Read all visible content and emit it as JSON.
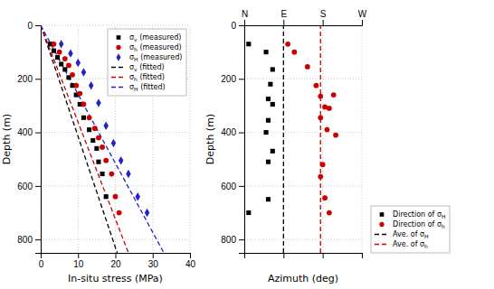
{
  "chart_data": [
    {
      "type": "scatter",
      "x_label": "In-situ stress (MPa)",
      "y_label": "Depth (m)",
      "xlim": [
        0,
        40
      ],
      "ylim": [
        850,
        0
      ],
      "xticks": [
        0,
        10,
        20,
        30,
        40
      ],
      "yticks": [
        0,
        200,
        400,
        600,
        800
      ],
      "grid": true,
      "legend": "upper right",
      "series": [
        {
          "name": "σv (measured)",
          "color": "#000000",
          "marker": "square",
          "x": [
            2.5,
            3.5,
            4.5,
            5.5,
            6.5,
            7.5,
            8.5,
            9.5,
            10.5,
            11.5,
            13.0,
            14.0,
            15.0,
            15.5,
            16.5,
            17.5
          ],
          "values": [
            70,
            95,
            120,
            145,
            165,
            195,
            225,
            260,
            295,
            345,
            390,
            430,
            460,
            510,
            555,
            640
          ]
        },
        {
          "name": "σh (measured)",
          "color": "#cc0000",
          "marker": "circle",
          "x": [
            3.5,
            5.0,
            6.5,
            7.5,
            8.5,
            9.5,
            10.5,
            11.5,
            13.0,
            14.5,
            15.5,
            16.5,
            17.5,
            19.0,
            20.0,
            21.0
          ],
          "values": [
            70,
            100,
            125,
            150,
            185,
            225,
            255,
            295,
            345,
            385,
            420,
            455,
            505,
            555,
            640,
            700
          ]
        },
        {
          "name": "σH (measured)",
          "color": "#2222cc",
          "marker": "diamond",
          "x": [
            5.5,
            8.0,
            10.0,
            11.5,
            13.5,
            15.5,
            17.5,
            19.5,
            21.5,
            23.5,
            26.0,
            28.5
          ],
          "values": [
            70,
            105,
            140,
            175,
            225,
            290,
            375,
            440,
            505,
            555,
            640,
            700
          ]
        },
        {
          "name": "σv (fitted)",
          "type": "line",
          "color": "#000000",
          "line_style": "dashed",
          "x": [
            0,
            20.5
          ],
          "values": [
            0,
            850
          ]
        },
        {
          "name": "σh (fitted)",
          "type": "line",
          "color": "#cc0000",
          "line_style": "dashed",
          "x": [
            0,
            23.5
          ],
          "values": [
            0,
            850
          ]
        },
        {
          "name": "σH (fitted)",
          "type": "line",
          "color": "#2222cc",
          "line_style": "dashed",
          "x": [
            0,
            33.0
          ],
          "values": [
            0,
            850
          ]
        }
      ]
    },
    {
      "type": "scatter",
      "x_label": "Azimuth (deg)",
      "y_label": "Depth (m)",
      "xlim": [
        0,
        270
      ],
      "ylim": [
        850,
        0
      ],
      "xticks": [
        {
          "value": 0,
          "label": "N"
        },
        {
          "value": 90,
          "label": "E"
        },
        {
          "value": 180,
          "label": "S"
        },
        {
          "value": 270,
          "label": "W"
        }
      ],
      "yticks": [
        0,
        200,
        400,
        600,
        800
      ],
      "grid": true,
      "legend": "right",
      "series": [
        {
          "name": "Direction of σH",
          "color": "#000000",
          "marker": "square",
          "x": [
            10,
            50,
            65,
            60,
            55,
            65,
            55,
            50,
            65,
            55,
            55,
            10
          ],
          "values": [
            70,
            100,
            165,
            220,
            275,
            295,
            355,
            400,
            470,
            510,
            650,
            700
          ]
        },
        {
          "name": "Direction of σh",
          "color": "#cc0000",
          "marker": "circle",
          "x": [
            100,
            115,
            145,
            165,
            175,
            185,
            175,
            190,
            210,
            205,
            195,
            180,
            175,
            185,
            195
          ],
          "values": [
            70,
            100,
            155,
            225,
            265,
            305,
            345,
            390,
            410,
            260,
            310,
            520,
            565,
            645,
            700
          ]
        },
        {
          "name": "Ave. of σH",
          "type": "vline",
          "color": "#000000",
          "line_style": "dashed",
          "x": [
            90
          ]
        },
        {
          "name": "Ave. of σh",
          "type": "vline",
          "color": "#cc0000",
          "line_style": "dashed",
          "x": [
            175
          ]
        }
      ]
    }
  ]
}
